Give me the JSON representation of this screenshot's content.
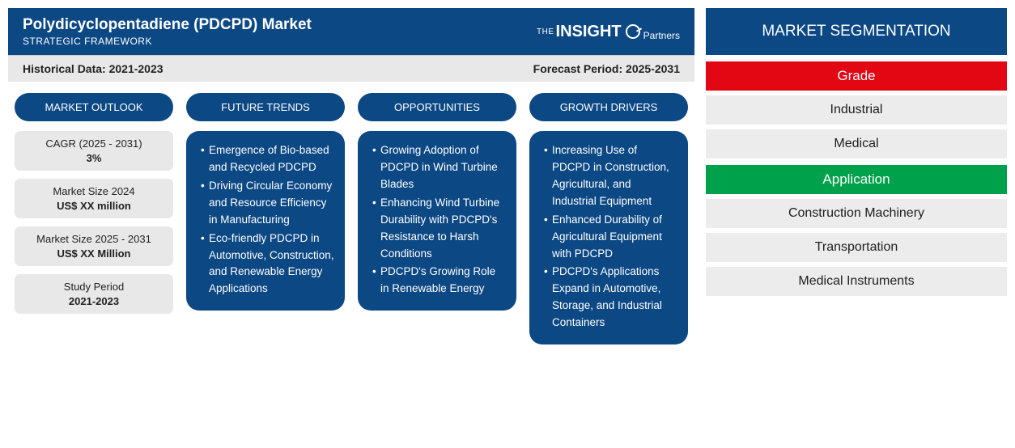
{
  "header": {
    "title": "Polydicyclopentadiene (PDCPD) Market",
    "subtitle": "STRATEGIC FRAMEWORK",
    "logo_small": "THE",
    "logo_main": "INSIGHT",
    "logo_sub": "Partners"
  },
  "meta": {
    "historical_label": "Historical Data:",
    "historical_value": "2021-2023",
    "forecast_label": "Forecast Period:",
    "forecast_value": "2025-2031"
  },
  "columns": {
    "outlook": {
      "header": "MARKET OUTLOOK",
      "boxes": [
        {
          "label": "CAGR (2025 - 2031)",
          "value": "3%"
        },
        {
          "label": "Market Size 2024",
          "value": "US$ XX million"
        },
        {
          "label": "Market Size 2025 - 2031",
          "value": "US$ XX Million"
        },
        {
          "label": "Study Period",
          "value": "2021-2023"
        }
      ]
    },
    "trends": {
      "header": "FUTURE TRENDS",
      "bullets": [
        "Emergence of Bio-based and Recycled PDCPD",
        "Driving Circular Economy and Resource Efficiency in Manufacturing",
        "Eco-friendly PDCPD in Automotive, Construction, and Renewable Energy Applications"
      ]
    },
    "opportunities": {
      "header": "OPPORTUNITIES",
      "bullets": [
        "Growing Adoption of PDCPD in Wind Turbine Blades",
        "Enhancing Wind Turbine Durability with PDCPD's Resistance to Harsh Conditions",
        "PDCPD's Growing Role in Renewable Energy"
      ]
    },
    "drivers": {
      "header": "GROWTH DRIVERS",
      "bullets": [
        "Increasing Use of PDCPD in Construction, Agricultural, and Industrial Equipment",
        "Enhanced Durability of Agricultural Equipment with PDCPD",
        "PDCPD's Applications Expand in Automotive, Storage, and Industrial Containers"
      ]
    }
  },
  "segmentation": {
    "header": "MARKET SEGMENTATION",
    "groups": [
      {
        "title": "Grade",
        "color": "red",
        "items": [
          "Industrial",
          "Medical"
        ]
      },
      {
        "title": "Application",
        "color": "green",
        "items": [
          "Construction Machinery",
          "Transportation",
          "Medical Instruments"
        ]
      }
    ]
  },
  "colors": {
    "primary": "#0c4884",
    "grey_bg": "#e8e8e8",
    "seg_item_bg": "#ececec",
    "red": "#e30613",
    "green": "#00a14b",
    "white": "#ffffff",
    "text": "#222222"
  }
}
